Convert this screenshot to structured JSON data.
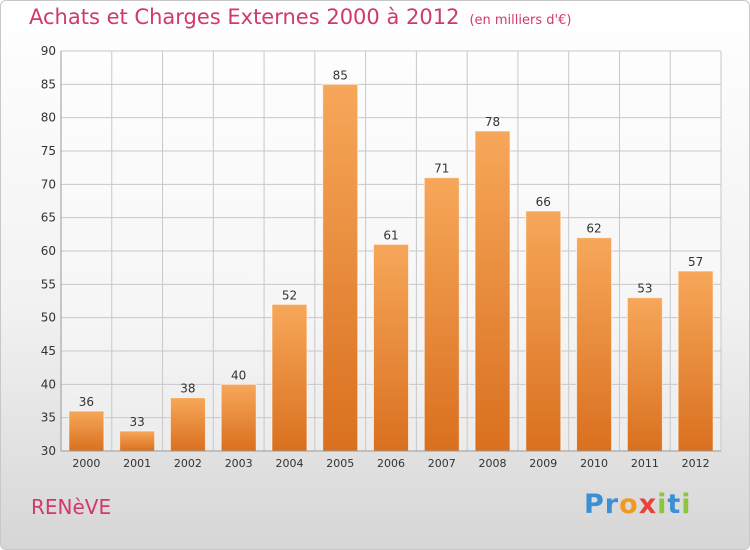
{
  "header": {
    "title": "Achats et Charges Externes 2000 à 2012",
    "subtitle": "(en milliers d'€)"
  },
  "footer": {
    "commune": "RENèVE",
    "brand_letters": [
      "P",
      "r",
      "o",
      "x",
      "i",
      "t",
      "i"
    ],
    "brand_colors": [
      "#3b8fd4",
      "#3b8fd4",
      "#f29a1f",
      "#e8433b",
      "#8cc63f",
      "#3b8fd4",
      "#8cc63f"
    ]
  },
  "colors": {
    "bar_top": "#f7a75a",
    "bar_bottom": "#d9701f",
    "grid": "#c8c8c8",
    "axis_text": "#333333",
    "title": "#d03a6a"
  },
  "chart_data": {
    "type": "bar",
    "title": "Achats et Charges Externes 2000 à 2012",
    "subtitle": "(en milliers d'€)",
    "xlabel": "",
    "ylabel": "",
    "categories": [
      "2000",
      "2001",
      "2002",
      "2003",
      "2004",
      "2005",
      "2006",
      "2007",
      "2008",
      "2009",
      "2010",
      "2011",
      "2012"
    ],
    "values": [
      36,
      33,
      38,
      40,
      52,
      85,
      61,
      71,
      78,
      66,
      62,
      53,
      57
    ],
    "ylim": [
      30,
      90
    ],
    "yticks": [
      30,
      35,
      40,
      45,
      50,
      55,
      60,
      65,
      70,
      75,
      80,
      85,
      90
    ],
    "grid": true,
    "data_labels": true
  }
}
